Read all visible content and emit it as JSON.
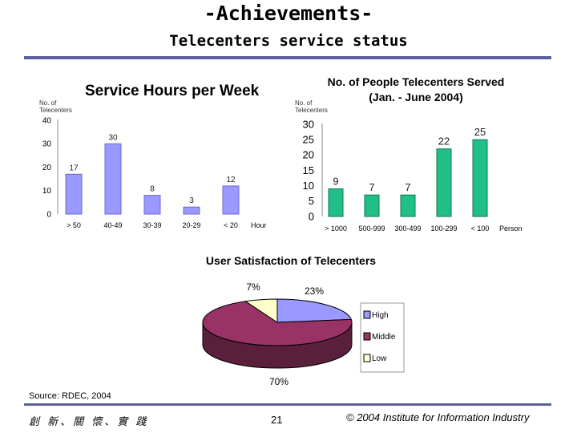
{
  "header": {
    "title": "-Achievements-",
    "subtitle": "Telecenters service status"
  },
  "footer": {
    "source": "Source: RDEC, 2004",
    "motto": "創 新、關 懷、實 踐",
    "page_number": "21",
    "copyright": "© 2004 Institute for Information Industry"
  },
  "colors": {
    "rule": "#5c5f9e",
    "bar_hours": "#9999ff",
    "bar_people": "#1fbf85",
    "pie_high": "#9999ff",
    "pie_middle": "#993366",
    "pie_low": "#ffffcc"
  },
  "chart_data": [
    {
      "type": "bar",
      "title": "Service Hours per Week",
      "ylabel": "No. of Telecenters",
      "xlabel": "Hour",
      "categories": [
        "> 50",
        "40-49",
        "30-39",
        "20-29",
        "< 20"
      ],
      "values": [
        17,
        30,
        8,
        3,
        12
      ],
      "yticks": [
        "0",
        "10",
        "20",
        "30",
        "40"
      ],
      "ylim": [
        0,
        40
      ],
      "grid": false
    },
    {
      "type": "bar",
      "title": "No. of People Telecenters Served",
      "subtitle": "(Jan. - June 2004)",
      "ylabel": "No. of Telecenters",
      "xlabel": "Person",
      "categories": [
        "> 1000",
        "500-999",
        "300-499",
        "100-299",
        "< 100"
      ],
      "values": [
        9,
        7,
        7,
        22,
        25
      ],
      "yticks": [
        "0",
        "5",
        "10",
        "15",
        "20",
        "25",
        "30"
      ],
      "ylim": [
        0,
        30
      ],
      "grid": false
    },
    {
      "type": "pie",
      "title": "User Satisfaction of Telecenters",
      "labels": [
        "High",
        "Middle",
        "Low"
      ],
      "values": [
        23,
        70,
        7
      ],
      "value_labels": [
        "23%",
        "70%",
        "7%"
      ],
      "legend": "right",
      "style": "3d"
    }
  ]
}
